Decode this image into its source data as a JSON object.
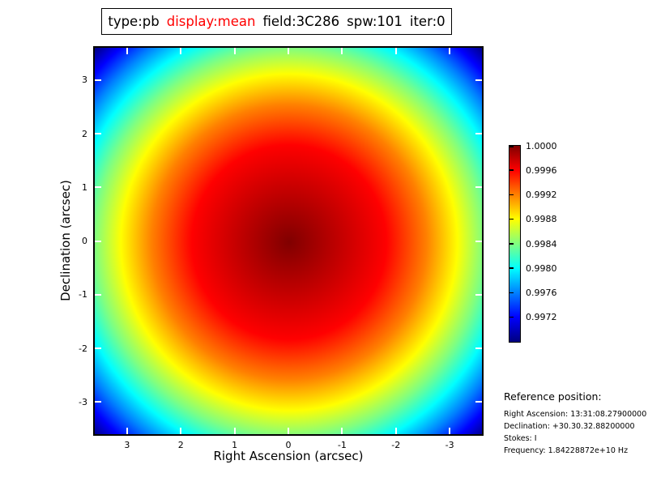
{
  "title": {
    "segments": [
      {
        "text": "type:pb",
        "color": "#000000"
      },
      {
        "text": "display:mean",
        "color": "#ff0000"
      },
      {
        "text": "field:3C286",
        "color": "#000000"
      },
      {
        "text": "spw:101",
        "color": "#000000"
      },
      {
        "text": "iter:0",
        "color": "#000000"
      }
    ]
  },
  "chart_data": {
    "type": "heatmap",
    "title": "type:pb display:mean field:3C286 spw:101 iter:0",
    "xlabel": "Right Ascension (arcsec)",
    "ylabel": "Declination (arcsec)",
    "x_ticks": [
      3,
      2,
      1,
      0,
      -1,
      -2,
      -3
    ],
    "y_ticks": [
      3,
      2,
      1,
      0,
      -1,
      -2,
      -3
    ],
    "xlim": [
      3.6,
      -3.6
    ],
    "ylim": [
      -3.6,
      3.6
    ],
    "x_axis_direction": "right-ascension decreases to the right",
    "grid": false,
    "tick_style": {
      "direction": "in",
      "color_on_image": "#ffffff"
    },
    "colormap": "jet",
    "colormap_stops": [
      {
        "t": 1.0,
        "color": "#800000"
      },
      {
        "t": 0.875,
        "color": "#ff0000"
      },
      {
        "t": 0.75,
        "color": "#ff8000"
      },
      {
        "t": 0.625,
        "color": "#ffff00"
      },
      {
        "t": 0.5,
        "color": "#80ff80"
      },
      {
        "t": 0.375,
        "color": "#00ffff"
      },
      {
        "t": 0.25,
        "color": "#0080ff"
      },
      {
        "t": 0.125,
        "color": "#0000ff"
      },
      {
        "t": 0.0,
        "color": "#000080"
      }
    ],
    "colorbar": {
      "position": "right",
      "ticks": [
        "1.0000",
        "0.9996",
        "0.9992",
        "0.9988",
        "0.9984",
        "0.9980",
        "0.9976",
        "0.9972"
      ],
      "vmax": 1.0,
      "vmin": 0.9968
    },
    "field": {
      "peak_value": 1.0,
      "peak_at_arcsec": [
        0,
        0
      ],
      "min_value_at_corners": 0.9968,
      "description": "Radially symmetric primary-beam (pb) mean image: value 1.0 at field center, falling quadratically with radius to about 0.9968 at the image corners"
    }
  },
  "reference": {
    "heading": "Reference position:",
    "lines": [
      "Right Ascension: 13:31:08.27900000",
      "Declination: +30.30.32.88200000",
      "Stokes: I",
      "Frequency: 1.84228872e+10 Hz"
    ]
  },
  "colors": {
    "background": "#ffffff",
    "title_highlight": "#ff0000",
    "axis_border": "#000000"
  }
}
